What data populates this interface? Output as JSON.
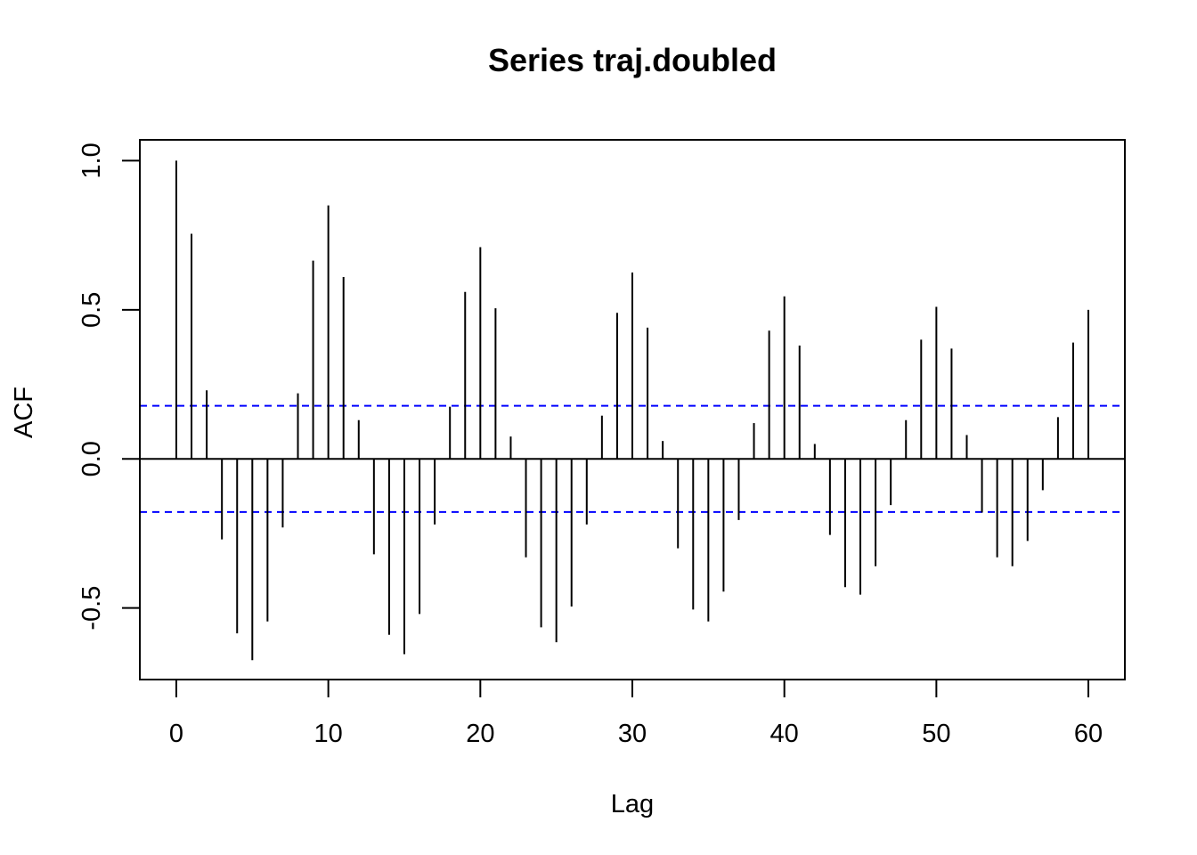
{
  "chart_data": {
    "type": "bar",
    "title": "Series  traj.doubled",
    "xlabel": "Lag",
    "ylabel": "ACF",
    "xlim": [
      -2.4,
      62.4
    ],
    "ylim": [
      -0.74,
      1.07
    ],
    "xticks": [
      0,
      10,
      20,
      30,
      40,
      50,
      60
    ],
    "xtick_labels": [
      "0",
      "10",
      "20",
      "30",
      "40",
      "50",
      "60"
    ],
    "yticks": [
      -0.5,
      0.0,
      0.5,
      1.0
    ],
    "ytick_labels": [
      "-0.5",
      "0.0",
      "0.5",
      "1.0"
    ],
    "lags": [
      0,
      1,
      2,
      3,
      4,
      5,
      6,
      7,
      8,
      9,
      10,
      11,
      12,
      13,
      14,
      15,
      16,
      17,
      18,
      19,
      20,
      21,
      22,
      23,
      24,
      25,
      26,
      27,
      28,
      29,
      30,
      31,
      32,
      33,
      34,
      35,
      36,
      37,
      38,
      39,
      40,
      41,
      42,
      43,
      44,
      45,
      46,
      47,
      48,
      49,
      50,
      51,
      52,
      53,
      54,
      55,
      56,
      57,
      58,
      59,
      60
    ],
    "acf": [
      1.0,
      0.755,
      0.23,
      -0.27,
      -0.585,
      -0.675,
      -0.545,
      -0.23,
      0.22,
      0.665,
      0.85,
      0.61,
      0.13,
      -0.32,
      -0.59,
      -0.655,
      -0.52,
      -0.22,
      0.175,
      0.56,
      0.71,
      0.505,
      0.075,
      -0.33,
      -0.565,
      -0.615,
      -0.495,
      -0.22,
      0.145,
      0.49,
      0.625,
      0.44,
      0.06,
      -0.3,
      -0.505,
      -0.545,
      -0.445,
      -0.205,
      0.12,
      0.43,
      0.545,
      0.38,
      0.05,
      -0.255,
      -0.43,
      -0.455,
      -0.36,
      -0.155,
      0.13,
      0.4,
      0.51,
      0.37,
      0.08,
      -0.18,
      -0.33,
      -0.36,
      -0.275,
      -0.105,
      0.14,
      0.39,
      0.5
    ],
    "confidence_bound": 0.178,
    "zero_line": true,
    "grid": false,
    "legend": "none",
    "colors": {
      "bars": "#000000",
      "confidence_lines": "#0000ff",
      "frame": "#000000"
    }
  }
}
